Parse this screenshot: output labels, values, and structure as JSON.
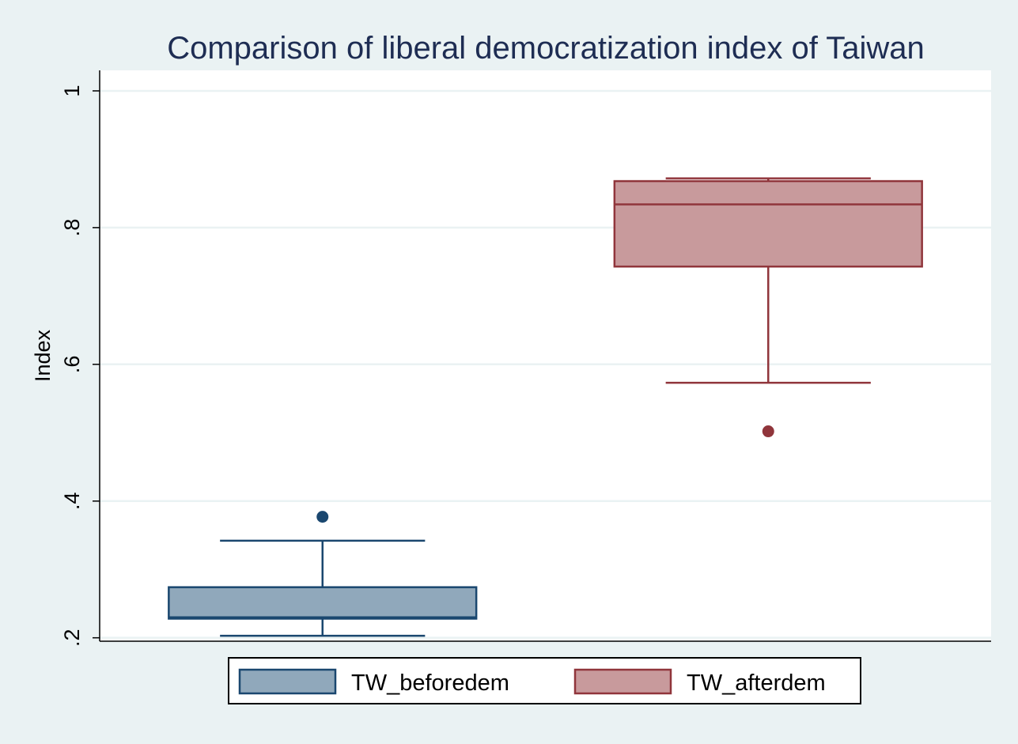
{
  "chart_data": {
    "type": "box",
    "title": "Comparison of liberal democratization index of Taiwan",
    "xlabel": "",
    "ylabel": "Index",
    "ylim": [
      0.195,
      1.03
    ],
    "yticks": [
      0.2,
      0.4,
      0.6,
      0.8,
      1.0
    ],
    "ytick_labels": [
      ".2",
      ".4",
      ".6",
      ".8",
      "1"
    ],
    "grid": true,
    "legend": "bottom",
    "series": [
      {
        "name": "TW_beforedem",
        "color": "#90a8bb",
        "edge_color": "#1a476f",
        "whisker_low": 0.203,
        "q1": 0.228,
        "median": 0.23,
        "q3": 0.274,
        "whisker_high": 0.342,
        "outliers": [
          0.377
        ]
      },
      {
        "name": "TW_afterdem",
        "color": "#c89a9c",
        "edge_color": "#90353b",
        "whisker_low": 0.573,
        "q1": 0.743,
        "median": 0.834,
        "q3": 0.868,
        "whisker_high": 0.872,
        "outliers": [
          0.502
        ]
      }
    ]
  }
}
